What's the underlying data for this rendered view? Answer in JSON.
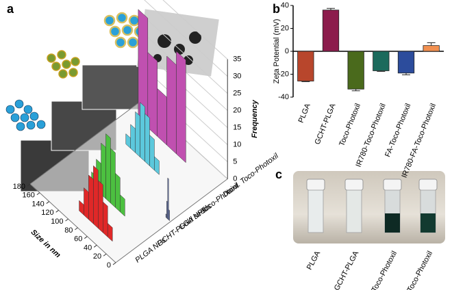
{
  "chart_data": [
    {
      "type": "bar3d",
      "panel_label": "a",
      "xlabel": "Size in nm",
      "ylabel": "Frequency",
      "xlim": [
        0,
        180
      ],
      "xticks": [
        0,
        20,
        40,
        60,
        80,
        100,
        120,
        140,
        160,
        180
      ],
      "ylim": [
        0,
        35
      ],
      "yticks": [
        0,
        5,
        10,
        15,
        20,
        25,
        30,
        35
      ],
      "series": [
        {
          "name": "PLGA NPs",
          "color": "#e02828",
          "bins": [
            30,
            40,
            50,
            60,
            70,
            80,
            90,
            100
          ],
          "values": [
            4,
            9,
            14,
            17,
            13,
            8,
            3
          ]
        },
        {
          "name": "GCHT-PLGA NPs",
          "color": "#4cc040",
          "bins": [
            50,
            60,
            70,
            80,
            90,
            100,
            110,
            120
          ],
          "values": [
            5,
            10,
            16,
            19,
            15,
            9,
            4
          ]
        },
        {
          "name": "Gold seeds",
          "color": "#6a7ab0",
          "bins": [
            2,
            4,
            6,
            8,
            10
          ],
          "values": [
            3,
            12,
            5,
            1
          ]
        },
        {
          "name": "Toco-Photoxil",
          "color": "#5cc8dc",
          "bins": [
            70,
            80,
            90,
            100,
            110,
            120,
            130,
            140
          ],
          "values": [
            4,
            9,
            14,
            16,
            12,
            7,
            3
          ]
        },
        {
          "name": "Daint. Toco-Photoxil",
          "color": "#c050b0",
          "bins": [
            60,
            80,
            100,
            120,
            140,
            160
          ],
          "values": [
            30,
            26,
            14,
            22,
            32
          ]
        }
      ]
    },
    {
      "type": "bar",
      "panel_label": "b",
      "ylabel": "Zeta Potential  (mV)",
      "categories": [
        "PLGA",
        "GCHT-PLGA",
        "Toco-Photoxil",
        "IR780-Toco-Photoxil",
        "FA-Toco-Photoxil",
        "IR780-FA-Toco-Photoxil"
      ],
      "values": [
        -26,
        36,
        -33,
        -17,
        -19,
        5
      ],
      "errors": [
        0.5,
        1.5,
        1.5,
        0.5,
        1.5,
        2.5
      ],
      "colors": [
        "#b8462c",
        "#8c1c4c",
        "#4a6a1c",
        "#1c6a5c",
        "#2c4c9c",
        "#f29050"
      ],
      "ylim": [
        -40,
        40
      ],
      "yticks": [
        -40,
        -20,
        0,
        20,
        40
      ]
    }
  ],
  "photo_panel": {
    "panel_label": "c",
    "labels": [
      "PLGA",
      "GCHT-PLGA",
      "Toco-Photoxil",
      "FA-Toco-Photoxil"
    ]
  }
}
